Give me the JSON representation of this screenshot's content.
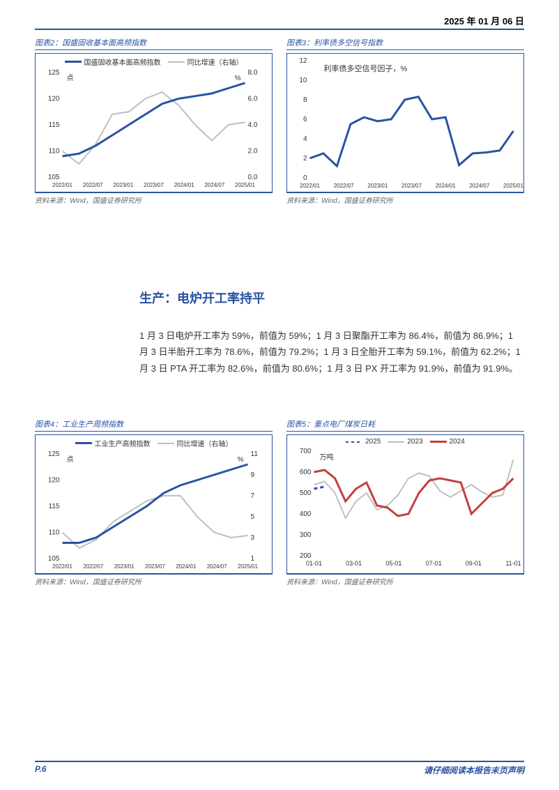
{
  "header": {
    "date": "2025 年 01 月 06 日"
  },
  "chart2": {
    "title": "图表2：国盛固收基本面高频指数",
    "source": "资料来源：Wind，国盛证券研究所",
    "type": "line",
    "legend": {
      "s1": "国盛固收基本面高频指数",
      "s2": "同比增速（右轴）"
    },
    "colors": {
      "s1": "#2952a3",
      "s2": "#bfbfbf",
      "border": "#2952a3",
      "bg": "#ffffff",
      "text": "#333333"
    },
    "y_left": {
      "label": "点",
      "min": 105,
      "max": 125,
      "step": 5
    },
    "y_right": {
      "label": "%",
      "min": 0.0,
      "max": 8.0,
      "step": 2.0
    },
    "x_labels": [
      "2022/01",
      "2022/07",
      "2023/01",
      "2023/07",
      "2024/01",
      "2024/07",
      "2025/01"
    ],
    "s1_points": [
      109,
      109.5,
      111,
      113,
      115,
      117,
      119,
      120,
      120.5,
      121,
      122,
      123
    ],
    "s2_points": [
      2.0,
      1.0,
      2.5,
      4.8,
      5.0,
      6.0,
      6.5,
      5.5,
      4.0,
      2.8,
      4.0,
      4.2
    ],
    "label_fontsize": 10,
    "line_width": 2
  },
  "chart3": {
    "title": "图表3：利率债多空信号指数",
    "source": "资料来源：Wind，国盛证券研究所",
    "type": "line",
    "series_label": "利率债多空信号因子，%",
    "color": "#2952a3",
    "y": {
      "min": 0,
      "max": 12,
      "step": 2
    },
    "x_labels": [
      "2022/01",
      "2022/07",
      "2023/01",
      "2023/07",
      "2024/01",
      "2024/07",
      "2025/01"
    ],
    "points": [
      2.0,
      2.5,
      1.2,
      5.5,
      6.2,
      5.8,
      6.0,
      8.0,
      8.3,
      6.0,
      6.2,
      1.3,
      2.5,
      2.6,
      2.8,
      4.8
    ],
    "label_fontsize": 10,
    "line_width": 2
  },
  "section": {
    "title": "生产：电炉开工率持平"
  },
  "body": {
    "text": "1 月 3 日电炉开工率为 59%，前值为 59%；1 月 3 日聚酯开工率为 86.4%，前值为 86.9%；1 月 3 日半胎开工率为 78.6%，前值为 79.2%；1 月 3 日全胎开工率为 59.1%，前值为 62.2%；1 月 3 日 PTA 开工率为 82.6%，前值为 80.6%；1 月 3 日 PX 开工率为 91.9%，前值为 91.9%。"
  },
  "chart4": {
    "title": "图表4：工业生产周频指数",
    "source": "资料来源：Wind，国盛证券研究所",
    "type": "line",
    "legend": {
      "s1": "工业生产高频指数",
      "s2": "同比增速（右轴）"
    },
    "colors": {
      "s1": "#2952a3",
      "s2": "#bfbfbf"
    },
    "y_left": {
      "label": "点",
      "min": 105,
      "max": 125,
      "step": 5
    },
    "y_right": {
      "label": "%",
      "min": 1,
      "max": 11,
      "step": 2
    },
    "x_labels": [
      "2022/01",
      "2022/07",
      "2023/01",
      "2023/07",
      "2024/01",
      "2024/07",
      "2025/01"
    ],
    "s1_points": [
      108,
      108,
      109,
      111,
      113,
      115,
      117.5,
      119,
      120,
      121,
      122,
      123
    ],
    "s2_points": [
      3.5,
      2.0,
      2.8,
      4.5,
      5.5,
      6.5,
      7.0,
      7.0,
      5.0,
      3.5,
      3.0,
      3.2
    ],
    "label_fontsize": 10,
    "line_width": 2
  },
  "chart5": {
    "title": "图表5：重点电厂煤炭日耗",
    "source": "资料来源：Wind，国盛证券研究所",
    "type": "line",
    "legend": {
      "s1": "2025",
      "s2": "2023",
      "s3": "2024"
    },
    "colors": {
      "s1": "#2952a3",
      "s2": "#bfbfbf",
      "s3": "#c33f3f"
    },
    "y": {
      "label": "万吨",
      "min": 200,
      "max": 700,
      "step": 100
    },
    "x_labels": [
      "01-01",
      "03-01",
      "05-01",
      "07-01",
      "09-01",
      "11-01"
    ],
    "s1_points": [
      520,
      530
    ],
    "s2_points": [
      540,
      555,
      500,
      380,
      460,
      500,
      420,
      440,
      490,
      570,
      595,
      580,
      510,
      480,
      510,
      540,
      505,
      480,
      490,
      660
    ],
    "s3_points": [
      600,
      610,
      570,
      460,
      520,
      550,
      440,
      430,
      390,
      400,
      500,
      560,
      570,
      560,
      550,
      400,
      450,
      500,
      520,
      570
    ],
    "label_fontsize": 10,
    "line_width": 2
  },
  "footer": {
    "page": "P.6",
    "disclaimer": "请仔细阅读本报告末页声明"
  }
}
